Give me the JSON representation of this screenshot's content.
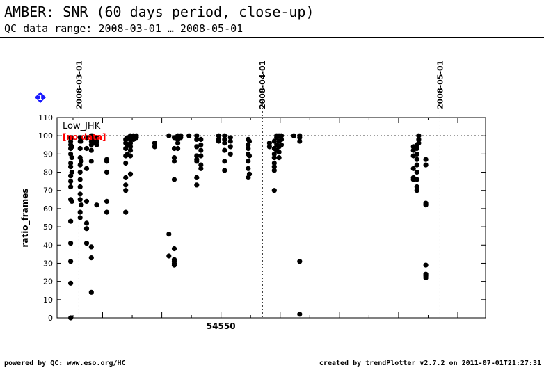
{
  "header": {
    "title": "AMBER: SNR (60 days period, close-up)",
    "subtitle": "QC data range: 2008-03-01 … 2008-05-01"
  },
  "footer": {
    "left": "powered by QC: www.eso.org/HC",
    "right": "created by trendPlotter v2.7.2 on 2011-07-01T21:27:31"
  },
  "badge": {
    "label": "1",
    "color": "#1a1aff",
    "icon": "diamond-icon"
  },
  "chart_data": {
    "type": "scatter",
    "title": "AMBER: SNR (60 days period, close-up)",
    "ylabel": "ratio_frames",
    "xlabel": "54550",
    "xlim": [
      54522.3,
      54594.7
    ],
    "ylim": [
      0,
      110
    ],
    "yticks": [
      0,
      10,
      20,
      30,
      40,
      50,
      60,
      70,
      80,
      90,
      100,
      110
    ],
    "xtick_label_value": 54550,
    "reference_line": 100,
    "date_markers": [
      {
        "label": "2008-03-01",
        "mjd": 54526
      },
      {
        "label": "2008-04-01",
        "mjd": 54557
      },
      {
        "label": "2008-05-01",
        "mjd": 54587
      }
    ],
    "legend": {
      "series_label": "Low_JHK",
      "status_label": "[no data]",
      "status_color": "#ff0000",
      "placement": "top-left"
    },
    "marker_color": "#000000",
    "series": [
      {
        "name": "Low_JHK",
        "points": [
          [
            54524.6,
            99
          ],
          [
            54524.6,
            97
          ],
          [
            54524.6,
            95
          ],
          [
            54524.6,
            93
          ],
          [
            54524.6,
            90
          ],
          [
            54524.6,
            85
          ],
          [
            54524.6,
            83
          ],
          [
            54524.6,
            78
          ],
          [
            54524.6,
            75
          ],
          [
            54524.6,
            72
          ],
          [
            54524.6,
            65
          ],
          [
            54524.6,
            53
          ],
          [
            54524.6,
            41
          ],
          [
            54524.6,
            31
          ],
          [
            54524.6,
            19
          ],
          [
            54524.6,
            0
          ],
          [
            54524.8,
            99
          ],
          [
            54524.8,
            94
          ],
          [
            54524.8,
            88
          ],
          [
            54524.8,
            80
          ],
          [
            54524.8,
            64
          ],
          [
            54526.2,
            99
          ],
          [
            54526.2,
            97
          ],
          [
            54526.2,
            93
          ],
          [
            54526.2,
            88
          ],
          [
            54526.2,
            84
          ],
          [
            54526.2,
            80
          ],
          [
            54526.2,
            76
          ],
          [
            54526.2,
            72
          ],
          [
            54526.2,
            68
          ],
          [
            54526.2,
            65
          ],
          [
            54526.2,
            58
          ],
          [
            54526.2,
            55
          ],
          [
            54526.4,
            97
          ],
          [
            54526.4,
            86
          ],
          [
            54526.4,
            62
          ],
          [
            54527.3,
            99
          ],
          [
            54527.3,
            93
          ],
          [
            54527.3,
            82
          ],
          [
            54527.3,
            64
          ],
          [
            54527.3,
            52
          ],
          [
            54527.3,
            49
          ],
          [
            54527.3,
            41
          ],
          [
            54528.1,
            100
          ],
          [
            54528.1,
            97
          ],
          [
            54528.1,
            95
          ],
          [
            54528.1,
            92
          ],
          [
            54528.1,
            86
          ],
          [
            54528.1,
            39
          ],
          [
            54528.1,
            33
          ],
          [
            54528.1,
            14
          ],
          [
            54528.3,
            100
          ],
          [
            54528.3,
            98
          ],
          [
            54528.3,
            96
          ],
          [
            54529.0,
            99
          ],
          [
            54529.0,
            97
          ],
          [
            54529.0,
            95
          ],
          [
            54529.0,
            62
          ],
          [
            54530.7,
            87
          ],
          [
            54530.7,
            86
          ],
          [
            54530.7,
            80
          ],
          [
            54530.7,
            64
          ],
          [
            54530.7,
            58
          ],
          [
            54533.9,
            98
          ],
          [
            54533.9,
            96
          ],
          [
            54533.9,
            93
          ],
          [
            54533.9,
            89
          ],
          [
            54533.9,
            85
          ],
          [
            54533.9,
            77
          ],
          [
            54533.9,
            73
          ],
          [
            54533.9,
            70
          ],
          [
            54533.9,
            58
          ],
          [
            54534.2,
            99
          ],
          [
            54534.2,
            95
          ],
          [
            54534.2,
            90
          ],
          [
            54534.7,
            100
          ],
          [
            54534.7,
            98
          ],
          [
            54534.7,
            96
          ],
          [
            54534.7,
            94
          ],
          [
            54534.7,
            92
          ],
          [
            54534.7,
            89
          ],
          [
            54534.7,
            79
          ],
          [
            54535.2,
            100
          ],
          [
            54535.2,
            98
          ],
          [
            54535.7,
            100
          ],
          [
            54535.7,
            99
          ],
          [
            54538.8,
            96
          ],
          [
            54538.8,
            94
          ],
          [
            54541.2,
            100
          ],
          [
            54541.2,
            46
          ],
          [
            54541.2,
            34
          ],
          [
            54542.1,
            99
          ],
          [
            54542.1,
            93
          ],
          [
            54542.1,
            88
          ],
          [
            54542.1,
            86
          ],
          [
            54542.1,
            76
          ],
          [
            54542.1,
            38
          ],
          [
            54542.1,
            32
          ],
          [
            54542.1,
            31
          ],
          [
            54542.1,
            30
          ],
          [
            54542.1,
            29
          ],
          [
            54542.7,
            100
          ],
          [
            54542.7,
            98
          ],
          [
            54542.7,
            96
          ],
          [
            54542.7,
            93
          ],
          [
            54543.2,
            100
          ],
          [
            54543.2,
            99
          ],
          [
            54544.6,
            100
          ],
          [
            54545.9,
            100
          ],
          [
            54545.9,
            98
          ],
          [
            54545.9,
            94
          ],
          [
            54545.9,
            89
          ],
          [
            54545.9,
            87
          ],
          [
            54545.9,
            86
          ],
          [
            54545.9,
            77
          ],
          [
            54545.9,
            73
          ],
          [
            54546.6,
            98
          ],
          [
            54546.6,
            95
          ],
          [
            54546.6,
            92
          ],
          [
            54546.6,
            89
          ],
          [
            54546.6,
            84
          ],
          [
            54546.6,
            82
          ],
          [
            54549.6,
            100
          ],
          [
            54549.6,
            98
          ],
          [
            54549.6,
            97
          ],
          [
            54550.6,
            100
          ],
          [
            54550.6,
            98
          ],
          [
            54550.6,
            96
          ],
          [
            54550.6,
            92
          ],
          [
            54550.6,
            86
          ],
          [
            54550.6,
            81
          ],
          [
            54551.6,
            99
          ],
          [
            54551.6,
            97
          ],
          [
            54551.6,
            94
          ],
          [
            54551.6,
            90
          ],
          [
            54554.6,
            98
          ],
          [
            54554.6,
            95
          ],
          [
            54554.6,
            93
          ],
          [
            54554.6,
            90
          ],
          [
            54554.6,
            86
          ],
          [
            54554.6,
            82
          ],
          [
            54554.6,
            77
          ],
          [
            54554.8,
            97
          ],
          [
            54554.8,
            89
          ],
          [
            54554.8,
            79
          ],
          [
            54558.2,
            96
          ],
          [
            54558.2,
            94
          ],
          [
            54559.0,
            97
          ],
          [
            54559.0,
            93
          ],
          [
            54559.0,
            90
          ],
          [
            54559.0,
            88
          ],
          [
            54559.0,
            85
          ],
          [
            54559.0,
            83
          ],
          [
            54559.0,
            81
          ],
          [
            54559.0,
            70
          ],
          [
            54559.4,
            100
          ],
          [
            54559.4,
            99
          ],
          [
            54559.4,
            95
          ],
          [
            54559.4,
            92
          ],
          [
            54559.8,
            100
          ],
          [
            54559.8,
            97
          ],
          [
            54559.8,
            94
          ],
          [
            54559.8,
            91
          ],
          [
            54559.8,
            88
          ],
          [
            54560.2,
            100
          ],
          [
            54560.2,
            98
          ],
          [
            54560.2,
            95
          ],
          [
            54562.3,
            100
          ],
          [
            54563.3,
            100
          ],
          [
            54563.3,
            99
          ],
          [
            54563.3,
            97
          ],
          [
            54563.3,
            31
          ],
          [
            54563.3,
            2
          ],
          [
            54582.5,
            94
          ],
          [
            54582.5,
            92
          ],
          [
            54582.5,
            89
          ],
          [
            54582.5,
            82
          ],
          [
            54582.5,
            77
          ],
          [
            54582.5,
            76
          ],
          [
            54583.1,
            95
          ],
          [
            54583.1,
            93
          ],
          [
            54583.1,
            90
          ],
          [
            54583.1,
            87
          ],
          [
            54583.1,
            84
          ],
          [
            54583.1,
            80
          ],
          [
            54583.1,
            76
          ],
          [
            54583.1,
            72
          ],
          [
            54583.1,
            70
          ],
          [
            54583.4,
            100
          ],
          [
            54583.4,
            98
          ],
          [
            54583.4,
            96
          ],
          [
            54584.6,
            87
          ],
          [
            54584.6,
            84
          ],
          [
            54584.6,
            63
          ],
          [
            54584.6,
            62
          ],
          [
            54584.6,
            29
          ],
          [
            54584.6,
            24
          ],
          [
            54584.6,
            23
          ],
          [
            54584.6,
            22
          ]
        ]
      }
    ]
  }
}
